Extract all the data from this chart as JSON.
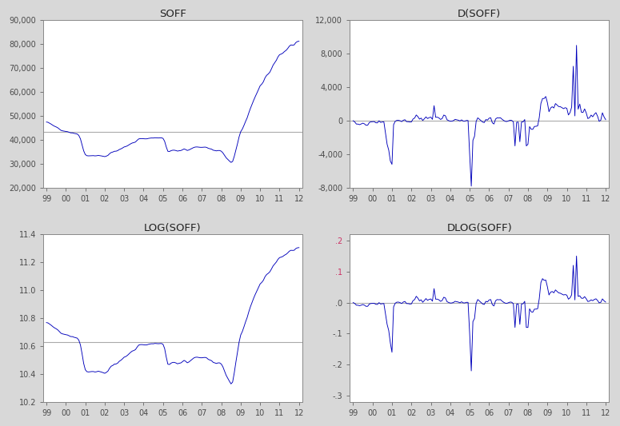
{
  "titles": [
    "SOFF",
    "D(SOFF)",
    "LOG(SOFF)",
    "DLOG(SOFF)"
  ],
  "background_color": "#d8d8d8",
  "plot_bg_color": "#ffffff",
  "line_color": "#0000bb",
  "mean_line_color": "#aaaaaa",
  "soff_ylim": [
    20000,
    90000
  ],
  "soff_yticks": [
    20000,
    30000,
    40000,
    50000,
    60000,
    70000,
    80000,
    90000
  ],
  "dsoff_ylim": [
    -8000,
    12000
  ],
  "dsoff_yticks": [
    -8000,
    -4000,
    0,
    4000,
    8000,
    12000
  ],
  "logsoff_ylim": [
    10.2,
    11.4
  ],
  "logsoff_yticks": [
    10.2,
    10.4,
    10.6,
    10.8,
    11.0,
    11.2,
    11.4
  ],
  "dlogsoff_ylim": [
    -0.3,
    0.2
  ],
  "dlogsoff_yticks": [
    0.2,
    0.1,
    0.0,
    -0.1,
    -0.2,
    -0.3
  ],
  "dlogsoff_labels": [
    ".2",
    ".1",
    ".0",
    "-.1",
    "-.2",
    "-.3"
  ],
  "xtick_labels": [
    "99",
    "00",
    "01",
    "02",
    "03",
    "04",
    "05",
    "06",
    "07",
    "08",
    "09",
    "10",
    "11",
    "12"
  ],
  "n_points": 157,
  "soff_mean": 43200,
  "logsoff_mean": 10.63,
  "font_color": "#4a4a4a",
  "positive_tick_color": "#cc3366"
}
